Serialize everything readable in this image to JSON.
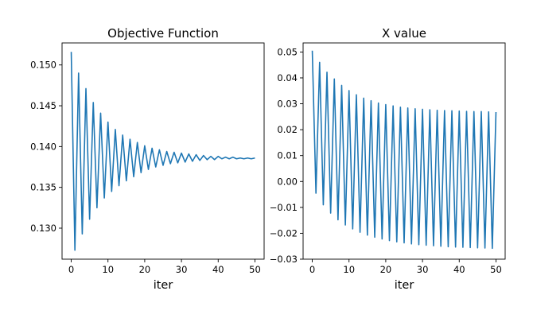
{
  "chart_data": [
    {
      "type": "line",
      "title": "Objective Function",
      "xlabel": "iter",
      "ylabel": "",
      "xlim": [
        -2.5,
        52.5
      ],
      "ylim": [
        0.1262,
        0.1527
      ],
      "xticks": [
        0,
        10,
        20,
        30,
        40,
        50
      ],
      "yticks": [
        0.13,
        0.135,
        0.14,
        0.145,
        0.15
      ],
      "ytick_labels": [
        "0.130",
        "0.135",
        "0.140",
        "0.145",
        "0.150"
      ],
      "grid": false,
      "legend": null,
      "line_color": "#1f77b4",
      "series": [
        {
          "x": [
            0,
            1,
            2,
            3,
            4,
            5,
            6,
            7,
            8,
            9,
            10,
            11,
            12,
            13,
            14,
            15,
            16,
            17,
            18,
            19,
            20,
            21,
            22,
            23,
            24,
            25,
            26,
            27,
            28,
            29,
            30,
            31,
            32,
            33,
            34,
            35,
            36,
            37,
            38,
            39,
            40,
            41,
            42,
            43,
            44,
            45,
            46,
            47,
            48,
            49,
            50
          ],
          "values": [
            0.1516,
            0.1273,
            0.149,
            0.1293,
            0.1471,
            0.1311,
            0.1454,
            0.1325,
            0.1441,
            0.1337,
            0.143,
            0.1345,
            0.1421,
            0.1352,
            0.1414,
            0.1358,
            0.1409,
            0.1363,
            0.1405,
            0.1368,
            0.1401,
            0.1372,
            0.1398,
            0.1375,
            0.1396,
            0.1377,
            0.1394,
            0.1379,
            0.1393,
            0.138,
            0.1392,
            0.1381,
            0.1391,
            0.1382,
            0.139,
            0.1383,
            0.1389,
            0.1384,
            0.1388,
            0.1384,
            0.1388,
            0.1385,
            0.1387,
            0.1385,
            0.1387,
            0.1385,
            0.1386,
            0.1385,
            0.1386,
            0.1385,
            0.1386
          ]
        }
      ]
    },
    {
      "type": "line",
      "title": "X value",
      "xlabel": "iter",
      "ylabel": "",
      "xlim": [
        -2.5,
        52.5
      ],
      "ylim": [
        -0.03,
        0.0535
      ],
      "xticks": [
        0,
        10,
        20,
        30,
        40,
        50
      ],
      "yticks": [
        -0.03,
        -0.02,
        -0.01,
        0.0,
        0.01,
        0.02,
        0.03,
        0.04,
        0.05
      ],
      "ytick_labels": [
        "−0.03",
        "−0.02",
        "−0.01",
        "0.00",
        "0.01",
        "0.02",
        "0.03",
        "0.04",
        "0.05"
      ],
      "grid": false,
      "legend": null,
      "line_color": "#1f77b4",
      "series": [
        {
          "x": [
            0,
            1,
            2,
            3,
            4,
            5,
            6,
            7,
            8,
            9,
            10,
            11,
            12,
            13,
            14,
            15,
            16,
            17,
            18,
            19,
            20,
            21,
            22,
            23,
            24,
            25,
            26,
            27,
            28,
            29,
            30,
            31,
            32,
            33,
            34,
            35,
            36,
            37,
            38,
            39,
            40,
            41,
            42,
            43,
            44,
            45,
            46,
            47,
            48,
            49,
            50
          ],
          "values": [
            0.0505,
            -0.0045,
            0.046,
            -0.009,
            0.0422,
            -0.0122,
            0.0396,
            -0.0148,
            0.0371,
            -0.0168,
            0.0351,
            -0.0183,
            0.0335,
            -0.0196,
            0.0322,
            -0.0207,
            0.0312,
            -0.0215,
            0.0303,
            -0.0222,
            0.0297,
            -0.0228,
            0.0292,
            -0.0233,
            0.0287,
            -0.0237,
            0.0284,
            -0.0241,
            0.0281,
            -0.0244,
            0.0279,
            -0.0246,
            0.0277,
            -0.0248,
            0.0275,
            -0.025,
            0.0274,
            -0.0252,
            0.0273,
            -0.0253,
            0.0272,
            -0.0254,
            0.0271,
            -0.0255,
            0.027,
            -0.0256,
            0.027,
            -0.0257,
            0.0269,
            -0.0258,
            0.0268
          ]
        }
      ]
    }
  ]
}
